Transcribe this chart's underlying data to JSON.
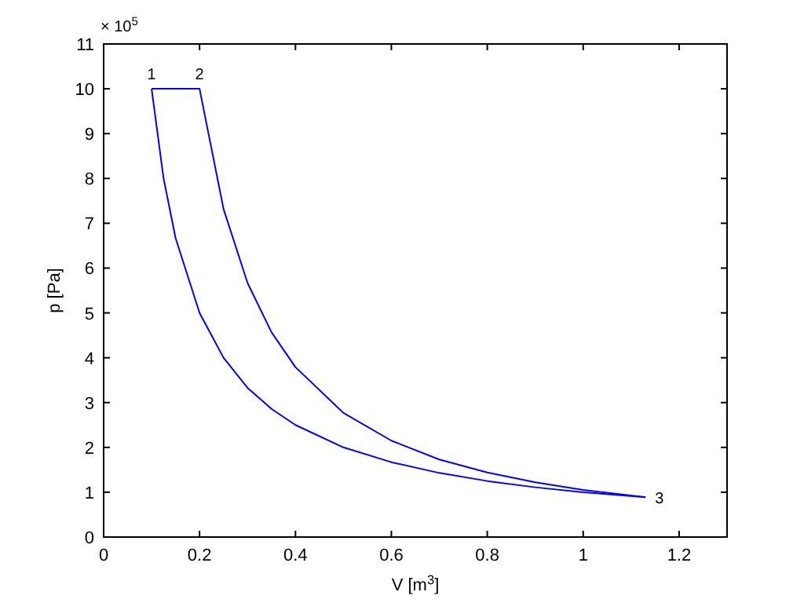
{
  "chart_data": {
    "type": "line",
    "xlabel": "V [m$^{3}$]",
    "ylabel": "p [Pa]",
    "xlim": [
      0,
      1.3
    ],
    "xticks": [
      0,
      0.2,
      0.4,
      0.6,
      0.8,
      1,
      1.2
    ],
    "ylim": [
      0,
      11
    ],
    "yticks": [
      0,
      1,
      2,
      3,
      4,
      5,
      6,
      7,
      8,
      9,
      10,
      11
    ],
    "grid": false,
    "marker": "none",
    "line_style": "solid",
    "annotations": [
      "× 10$^{5}$",
      {
        "text": "1",
        "x": 0.1,
        "y": 10
      },
      {
        "text": "2",
        "x": 0.2,
        "y": 10
      },
      {
        "text": "3",
        "x": 1.13,
        "y": 0.89
      }
    ],
    "series": [
      {
        "color": "#0000ff",
        "x": [
          0.1,
          0.2,
          0.25,
          0.3,
          0.35,
          0.4,
          0.5,
          0.6,
          0.7,
          0.8,
          0.9,
          1.0,
          1.13
        ],
        "values": [
          10,
          10,
          7.32,
          5.67,
          4.57,
          3.79,
          2.77,
          2.15,
          1.73,
          1.44,
          1.22,
          1.05,
          0.89
        ]
      },
      {
        "color": "#0000ff",
        "x": [
          0.1,
          0.125,
          0.15,
          0.2,
          0.25,
          0.3,
          0.35,
          0.4,
          0.5,
          0.6,
          0.7,
          0.8,
          0.9,
          1.0,
          1.13
        ],
        "values": [
          10,
          8.0,
          6.67,
          5.0,
          4.0,
          3.33,
          2.86,
          2.5,
          2.0,
          1.67,
          1.43,
          1.25,
          1.11,
          1.0,
          0.89
        ]
      }
    ]
  }
}
